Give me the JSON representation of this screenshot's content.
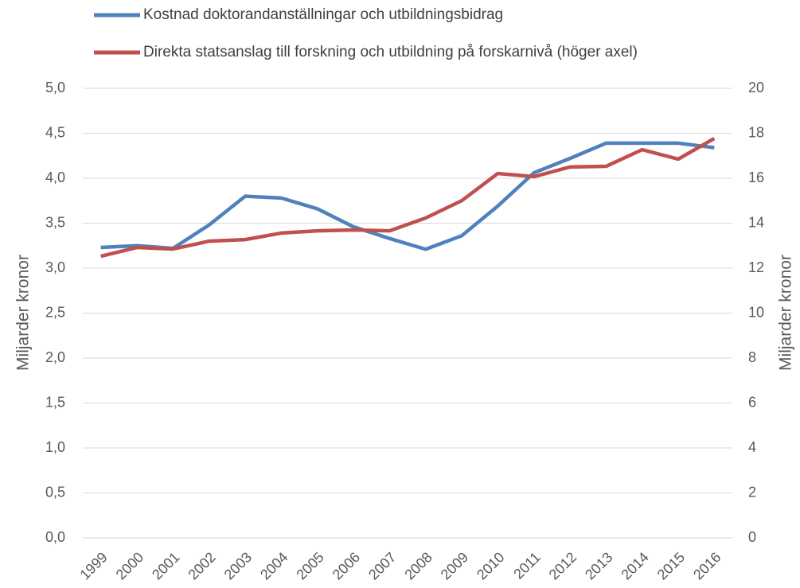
{
  "chart_data": {
    "type": "line",
    "categories": [
      "1999",
      "2000",
      "2001",
      "2002",
      "2003",
      "2004",
      "2005",
      "2006",
      "2007",
      "2008",
      "2009",
      "2010",
      "2011",
      "2012",
      "2013",
      "2014",
      "2015",
      "2016"
    ],
    "series": [
      {
        "name": "Kostnad doktorandanställningar och utbildningsbidrag",
        "color": "#4f81bd",
        "axis": "y",
        "values": [
          3.23,
          3.25,
          3.22,
          3.48,
          3.8,
          3.78,
          3.66,
          3.46,
          3.33,
          3.21,
          3.36,
          3.69,
          4.06,
          4.22,
          4.39,
          4.39,
          4.39,
          4.34
        ]
      },
      {
        "name": "Direkta statsanslag till forskning och utbildning på forskarnivå (höger axel)",
        "color": "#c0504d",
        "axis": "y2",
        "values": [
          12.53,
          12.92,
          12.85,
          13.2,
          13.27,
          13.56,
          13.66,
          13.7,
          13.66,
          14.23,
          15.0,
          16.21,
          16.07,
          16.5,
          16.53,
          17.27,
          16.85,
          17.77
        ]
      }
    ],
    "ylabel": "Miljarder kronor",
    "y2label": "Miljarder kronor",
    "ylim": [
      0,
      5
    ],
    "yticks": [
      {
        "value": 0,
        "label": "0,0"
      },
      {
        "value": 0.5,
        "label": "0,5"
      },
      {
        "value": 1,
        "label": "1,0"
      },
      {
        "value": 1.5,
        "label": "1,5"
      },
      {
        "value": 2,
        "label": "2,0"
      },
      {
        "value": 2.5,
        "label": "2,5"
      },
      {
        "value": 3,
        "label": "3,0"
      },
      {
        "value": 3.5,
        "label": "3,5"
      },
      {
        "value": 4,
        "label": "4,0"
      },
      {
        "value": 4.5,
        "label": "4,5"
      },
      {
        "value": 5,
        "label": "5,0"
      }
    ],
    "y2lim": [
      0,
      20
    ],
    "y2ticks": [
      0,
      2,
      4,
      6,
      8,
      10,
      12,
      14,
      16,
      18,
      20
    ],
    "grid": true
  }
}
